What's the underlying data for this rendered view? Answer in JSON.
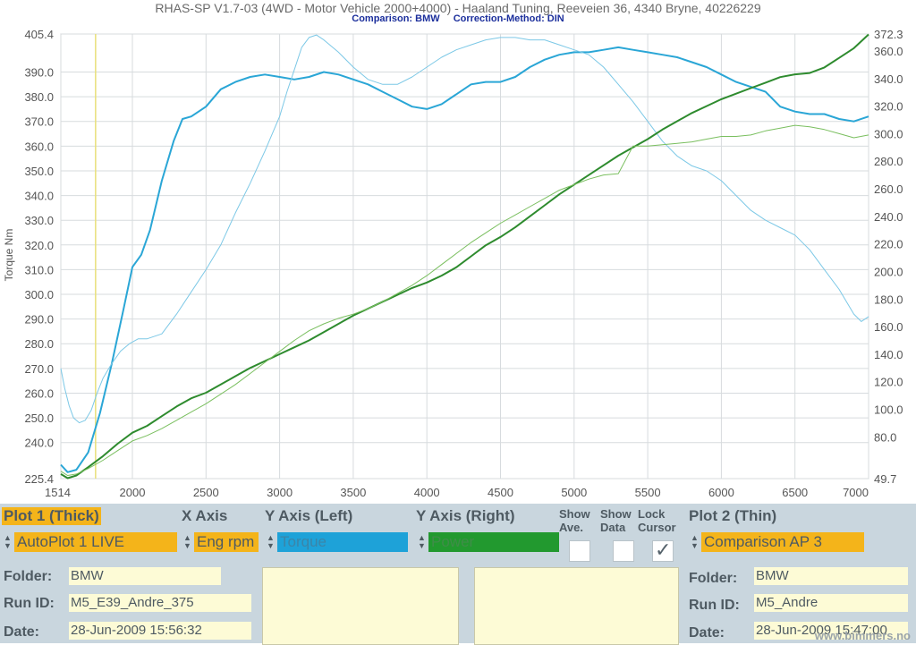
{
  "header": {
    "title": "RHAS-SP V1.7-03   (4WD - Motor Vehicle 2000+4000) - Haaland Tuning, Reeveien 36, 4340 Bryne, 40226229",
    "comparison": "Comparison: BMW",
    "correction": "Correction-Method: DIN"
  },
  "chart_data": {
    "type": "line",
    "xlim": [
      1514,
      7000
    ],
    "x_ticks": [
      1514,
      2000,
      2500,
      3000,
      3500,
      4000,
      4500,
      5000,
      5500,
      6000,
      6500,
      7000
    ],
    "ylabel_left": "Torque Nm",
    "ylim_left": [
      225.4,
      405.4
    ],
    "y_ticks_left": [
      225.4,
      240,
      250,
      260,
      270,
      280,
      290,
      300,
      310,
      320,
      330,
      340,
      350,
      360,
      370,
      380,
      390,
      405.4
    ],
    "ylim_right": [
      49.7,
      372.3
    ],
    "y_ticks_right": [
      49.7,
      80,
      100,
      120,
      140,
      160,
      180,
      200,
      220,
      240,
      260,
      280,
      300,
      320,
      340,
      360,
      372.3
    ],
    "grid": true,
    "cursor_x": 1750,
    "colors": {
      "torque": "#2aa6d6",
      "torque_thin": "#7cc8e6",
      "power": "#2e8b2e",
      "power_thin": "#7abf5f",
      "cursor": "#e8e07a"
    },
    "series": [
      {
        "axis": "left",
        "weight": "thick",
        "color": "#2aa6d6",
        "x": [
          1514,
          1560,
          1620,
          1700,
          1780,
          1860,
          1940,
          2000,
          2060,
          2120,
          2200,
          2280,
          2340,
          2400,
          2500,
          2600,
          2700,
          2800,
          2900,
          3000,
          3100,
          3200,
          3300,
          3400,
          3500,
          3600,
          3700,
          3800,
          3900,
          4000,
          4100,
          4200,
          4300,
          4400,
          4500,
          4600,
          4700,
          4800,
          4900,
          5000,
          5100,
          5200,
          5300,
          5400,
          5500,
          5600,
          5700,
          5800,
          5900,
          6000,
          6100,
          6200,
          6300,
          6400,
          6500,
          6600,
          6700,
          6800,
          6900,
          7000
        ],
        "y": [
          231,
          228,
          229,
          236,
          252,
          272,
          294,
          311,
          316,
          326,
          346,
          362,
          371,
          372,
          376,
          383,
          386,
          388,
          389,
          388,
          387,
          388,
          390,
          389,
          387,
          385,
          382,
          379,
          376,
          375,
          377,
          381,
          385,
          386,
          386,
          388,
          392,
          395,
          397,
          398,
          398,
          399,
          400,
          399,
          398,
          397,
          396,
          394,
          392,
          389,
          386,
          384,
          382,
          376,
          374,
          373,
          373,
          371,
          370,
          372
        ]
      },
      {
        "axis": "left",
        "weight": "thin",
        "color": "#7cc8e6",
        "x": [
          1514,
          1540,
          1570,
          1600,
          1640,
          1680,
          1720,
          1760,
          1800,
          1860,
          1920,
          1980,
          2040,
          2100,
          2200,
          2300,
          2400,
          2500,
          2600,
          2700,
          2800,
          2900,
          3000,
          3050,
          3100,
          3150,
          3200,
          3250,
          3300,
          3400,
          3500,
          3600,
          3700,
          3800,
          3900,
          4000,
          4100,
          4200,
          4300,
          4400,
          4500,
          4600,
          4700,
          4800,
          4900,
          5000,
          5100,
          5200,
          5300,
          5400,
          5500,
          5600,
          5700,
          5800,
          5900,
          6000,
          6100,
          6200,
          6300,
          6400,
          6500,
          6600,
          6700,
          6800,
          6900,
          6950,
          7000
        ],
        "y": [
          270,
          262,
          255,
          250,
          248,
          249,
          253,
          260,
          266,
          272,
          277,
          280,
          282,
          282,
          284,
          292,
          301,
          310,
          320,
          333,
          345,
          358,
          372,
          382,
          391,
          400,
          404,
          405,
          403,
          398,
          392,
          387,
          385,
          385,
          388,
          392,
          396,
          399,
          401,
          403,
          404,
          404,
          403,
          403,
          401,
          399,
          397,
          392,
          385,
          378,
          370,
          362,
          356,
          352,
          350,
          346,
          340,
          334,
          330,
          327,
          324,
          318,
          310,
          302,
          292,
          289,
          291
        ]
      },
      {
        "axis": "right",
        "weight": "thick",
        "color": "#2e8b2e",
        "x": [
          1514,
          1560,
          1620,
          1700,
          1800,
          1900,
          2000,
          2100,
          2200,
          2300,
          2400,
          2500,
          2600,
          2700,
          2800,
          2900,
          3000,
          3100,
          3200,
          3300,
          3400,
          3500,
          3600,
          3700,
          3800,
          3900,
          4000,
          4100,
          4200,
          4300,
          4400,
          4500,
          4600,
          4700,
          4800,
          4900,
          5000,
          5100,
          5200,
          5300,
          5400,
          5500,
          5600,
          5700,
          5800,
          5900,
          6000,
          6100,
          6200,
          6300,
          6400,
          6500,
          6600,
          6700,
          6800,
          6900,
          7000
        ],
        "y": [
          53,
          50,
          52,
          58,
          66,
          75,
          83,
          88,
          95,
          102,
          108,
          112,
          118,
          124,
          130,
          135,
          140,
          145,
          150,
          156,
          162,
          168,
          173,
          178,
          183,
          188,
          192,
          197,
          203,
          211,
          219,
          225,
          232,
          240,
          248,
          256,
          263,
          270,
          277,
          284,
          290,
          296,
          303,
          309,
          315,
          320,
          325,
          329,
          333,
          337,
          341,
          343,
          344,
          348,
          355,
          362,
          372
        ]
      },
      {
        "axis": "right",
        "weight": "thin",
        "color": "#7abf5f",
        "x": [
          1514,
          1560,
          1620,
          1700,
          1800,
          1900,
          2000,
          2100,
          2200,
          2300,
          2400,
          2500,
          2600,
          2700,
          2800,
          2900,
          3000,
          3100,
          3200,
          3300,
          3400,
          3500,
          3600,
          3700,
          3800,
          3900,
          4000,
          4100,
          4200,
          4300,
          4400,
          4500,
          4600,
          4700,
          4800,
          4900,
          5000,
          5100,
          5200,
          5300,
          5400,
          5500,
          5600,
          5700,
          5800,
          5900,
          6000,
          6100,
          6200,
          6300,
          6400,
          6500,
          6600,
          6700,
          6800,
          6900,
          7000
        ],
        "y": [
          55,
          52,
          53,
          57,
          63,
          70,
          77,
          81,
          86,
          92,
          98,
          104,
          111,
          118,
          126,
          134,
          142,
          150,
          157,
          162,
          166,
          169,
          173,
          178,
          184,
          190,
          197,
          205,
          213,
          221,
          228,
          235,
          241,
          247,
          253,
          259,
          263,
          267,
          270,
          271,
          291,
          291,
          292,
          293,
          294,
          296,
          298,
          298,
          299,
          302,
          304,
          306,
          305,
          303,
          300,
          297,
          299
        ]
      }
    ]
  },
  "panel": {
    "plot1_label": "Plot 1 (Thick)",
    "xaxis_label": "X Axis",
    "yleft_label": "Y Axis (Left)",
    "yright_label": "Y Axis (Right)",
    "show_ave_label": "Show Ave.",
    "show_data_label": "Show Data",
    "lock_cursor_label": "Lock Cursor",
    "plot2_label": "Plot 2 (Thin)",
    "plot1_select": "AutoPlot 1 LIVE",
    "xaxis_select": "Eng rpm",
    "yleft_select": "Torque",
    "yright_select": "Power",
    "plot2_select": "Comparison AP 3",
    "lock_cursor_checked": true,
    "folder_label": "Folder:",
    "runid_label": "Run ID:",
    "date_label": "Date:",
    "plot1_folder": "BMW",
    "plot1_runid": "M5_E39_Andre_375",
    "plot1_date": "28-Jun-2009  15:56:32",
    "plot2_folder": "BMW",
    "plot2_runid": "M5_Andre",
    "plot2_date": "28-Jun-2009  15:47:00"
  },
  "watermark": "www.bimmers.no"
}
